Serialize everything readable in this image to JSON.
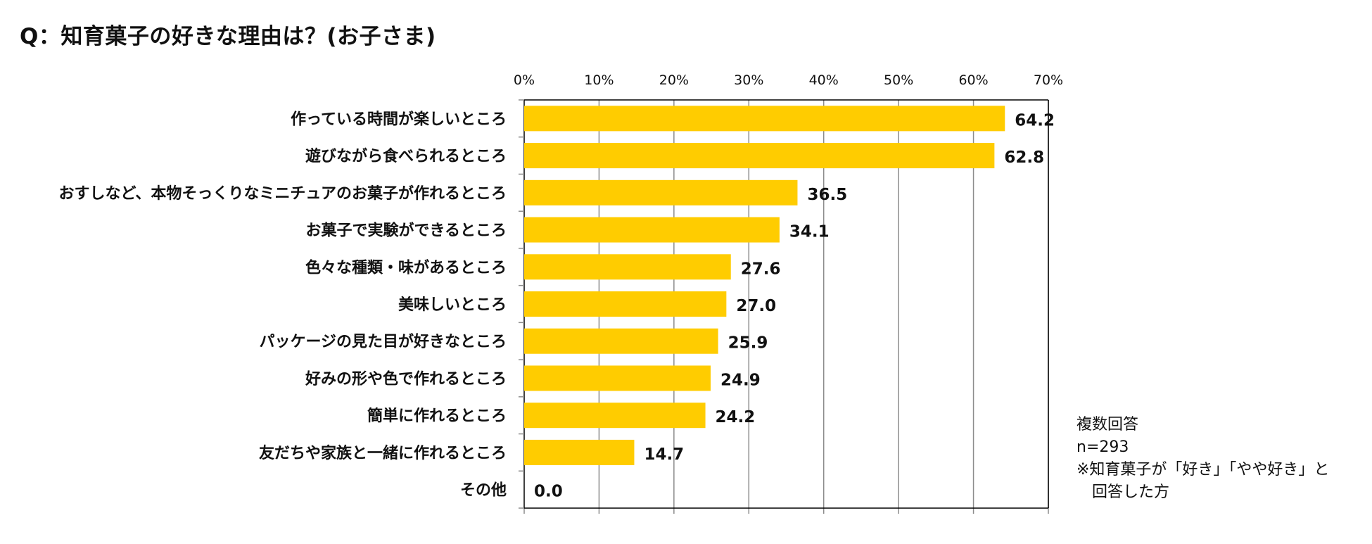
{
  "title": "Q：知育菓子の好きな理由は？(お子さま)",
  "note": {
    "line1": "複数回答",
    "line2": "n=293",
    "line3": "※知育菓子が「好き」「やや好き」と",
    "line4": "回答した方"
  },
  "colors": {
    "bar": "#FFCC00",
    "grid": "#8c8c8c",
    "axis": "#000000"
  },
  "chart_data": {
    "type": "bar",
    "orientation": "horizontal",
    "categories": [
      "作っている時間が楽しいところ",
      "遊びながら食べられるところ",
      "おすしなど、本物そっくりなミニチュアのお菓子が作れるところ",
      "お菓子で実験ができるところ",
      "色々な種類・味があるところ",
      "美味しいところ",
      "パッケージの見た目が好きなところ",
      "好みの形や色で作れるところ",
      "簡単に作れるところ",
      "友だちや家族と一緒に作れるところ",
      "その他"
    ],
    "values": [
      64.2,
      62.8,
      36.5,
      34.1,
      27.6,
      27.0,
      25.9,
      24.9,
      24.2,
      14.7,
      0.0
    ],
    "value_labels": [
      "64.2",
      "62.8",
      "36.5",
      "34.1",
      "27.6",
      "27.0",
      "25.9",
      "24.9",
      "24.2",
      "14.7",
      "0.0"
    ],
    "xlim": [
      0,
      70
    ],
    "xticks": [
      0,
      10,
      20,
      30,
      40,
      50,
      60,
      70
    ],
    "xtick_labels": [
      "0%",
      "10%",
      "20%",
      "30%",
      "40%",
      "50%",
      "60%",
      "70%"
    ],
    "xaxis_position": "top",
    "grid": true,
    "legend": "none"
  }
}
